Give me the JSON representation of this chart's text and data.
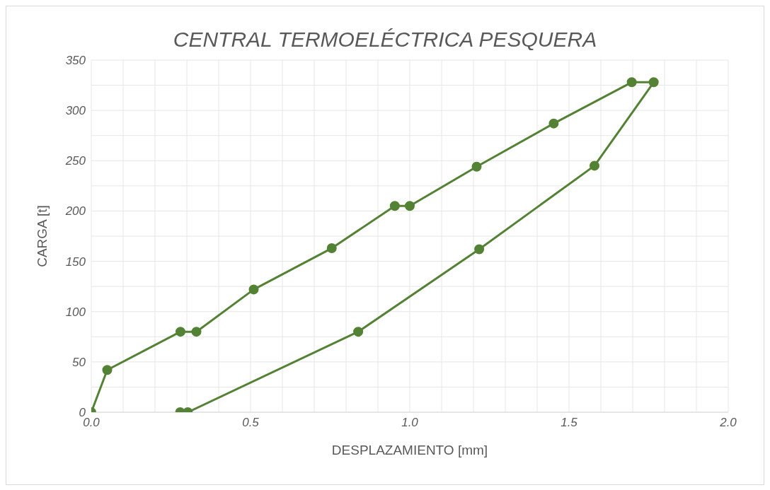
{
  "chart_data": {
    "type": "line",
    "title": "CENTRAL TERMOELÉCTRICA PESQUERA",
    "xlabel": "DESPLAZAMIENTO [mm]",
    "ylabel": "CARGA [t]",
    "x": [
      0,
      0.05,
      0.28,
      0.33,
      0.51,
      0.755,
      0.953,
      1.0,
      1.21,
      1.452,
      1.697,
      1.766,
      1.58,
      1.218,
      0.838,
      0.303,
      0.279
    ],
    "series": [
      {
        "color": "#548235",
        "values": [
          0,
          42,
          80,
          80,
          122,
          163,
          205,
          205,
          244,
          287,
          328,
          328,
          245,
          162,
          80,
          0,
          0
        ]
      }
    ],
    "xlim": [
      0,
      2
    ],
    "ylim": [
      0,
      350
    ],
    "xticks": [
      {
        "value": 0,
        "label": "0.0"
      },
      {
        "value": 0.1,
        "label": null
      },
      {
        "value": 0.2,
        "label": null
      },
      {
        "value": 0.3,
        "label": null
      },
      {
        "value": 0.4,
        "label": null
      },
      {
        "value": 0.5,
        "label": "0.5"
      },
      {
        "value": 0.6,
        "label": null
      },
      {
        "value": 0.7,
        "label": null
      },
      {
        "value": 0.8,
        "label": null
      },
      {
        "value": 0.9,
        "label": null
      },
      {
        "value": 1,
        "label": "1.0"
      },
      {
        "value": 1.1,
        "label": null
      },
      {
        "value": 1.2,
        "label": null
      },
      {
        "value": 1.3,
        "label": null
      },
      {
        "value": 1.4,
        "label": null
      },
      {
        "value": 1.5,
        "label": "1.5"
      },
      {
        "value": 1.6,
        "label": null
      },
      {
        "value": 1.7,
        "label": null
      },
      {
        "value": 1.8,
        "label": null
      },
      {
        "value": 1.9,
        "label": null
      },
      {
        "value": 2,
        "label": "2.0"
      }
    ],
    "yticks": [
      0,
      {
        "value": 25,
        "label": null
      },
      50,
      {
        "value": 75,
        "label": null
      },
      100,
      {
        "value": 125,
        "label": null
      },
      150,
      {
        "value": 175,
        "label": null
      },
      200,
      {
        "value": 225,
        "label": null
      },
      250,
      {
        "value": 275,
        "label": null
      },
      300,
      {
        "value": 325,
        "label": null
      },
      350
    ],
    "grid": true,
    "marker": "circle",
    "line_style": "solid",
    "legend": false
  }
}
